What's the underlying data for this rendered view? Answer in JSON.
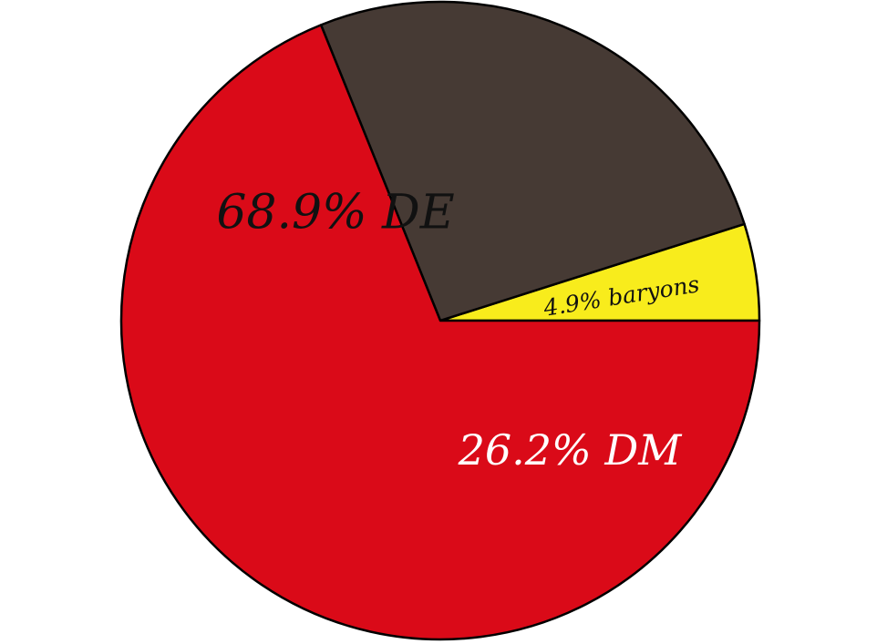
{
  "chart_data": {
    "type": "pie",
    "title": "",
    "slices": [
      {
        "label": "4.9% baryons",
        "value": 4.9,
        "color": "#f8ec1c",
        "label_color": "#111111"
      },
      {
        "label": "26.2% DM",
        "value": 26.2,
        "color": "#463a34",
        "label_color": "#ffffff"
      },
      {
        "label": "68.9% DE",
        "value": 68.9,
        "color": "#da0a18",
        "label_color": "#111111"
      }
    ]
  }
}
